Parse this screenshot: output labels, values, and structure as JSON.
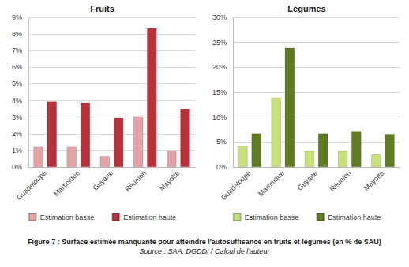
{
  "chart_data": [
    {
      "type": "bar",
      "title": "Fruits",
      "categories": [
        "Guadeloupe",
        "Martinique",
        "Guyane",
        "Réunion",
        "Mayotte"
      ],
      "series": [
        {
          "name": "Estimation basse",
          "color": "#e3a3a8",
          "values": [
            1.2,
            1.2,
            0.65,
            3.05,
            0.95
          ]
        },
        {
          "name": "Estimation haute",
          "color": "#b5343b",
          "values": [
            3.95,
            3.85,
            2.95,
            8.35,
            3.5
          ]
        }
      ],
      "ylim": [
        0,
        9
      ],
      "yticks": [
        {
          "value": 0,
          "label": "0%"
        },
        {
          "value": 1,
          "label": "1%"
        },
        {
          "value": 2,
          "label": "2%"
        },
        {
          "value": 3,
          "label": "3%"
        },
        {
          "value": 4,
          "label": "4%"
        },
        {
          "value": 5,
          "label": "5%"
        },
        {
          "value": 6,
          "label": "6%"
        },
        {
          "value": 7,
          "label": "7%"
        },
        {
          "value": 8,
          "label": "8%"
        },
        {
          "value": 9,
          "label": "9%"
        }
      ],
      "grid": true,
      "legend": "bottom"
    },
    {
      "type": "bar",
      "title": "Légumes",
      "categories": [
        "Guadeloupe",
        "Martinique",
        "Guyane",
        "Réunion",
        "Mayotte"
      ],
      "series": [
        {
          "name": "Estimation basse",
          "color": "#c9e07f",
          "values": [
            4.2,
            13.9,
            3.2,
            3.2,
            2.5
          ]
        },
        {
          "name": "Estimation haute",
          "color": "#5f7d20",
          "values": [
            6.7,
            23.9,
            6.7,
            7.2,
            6.6
          ]
        }
      ],
      "ylim": [
        0,
        30
      ],
      "yticks": [
        {
          "value": 0,
          "label": "0%"
        },
        {
          "value": 5,
          "label": "5%"
        },
        {
          "value": 10,
          "label": "10%"
        },
        {
          "value": 15,
          "label": "15%"
        },
        {
          "value": 20,
          "label": "20%"
        },
        {
          "value": 25,
          "label": "25%"
        },
        {
          "value": 30,
          "label": "30%"
        }
      ],
      "grid": true,
      "legend": "bottom"
    }
  ],
  "caption": "Figure 7 : Surface estimée manquante pour atteindre l'autosuffisance en fruits et légumes (en % de SAU)",
  "source": "Source : SAA, DGDDI / Calcul de l'auteur"
}
